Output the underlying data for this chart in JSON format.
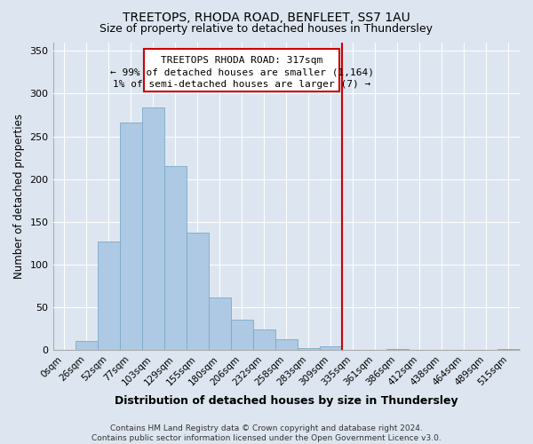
{
  "title": "TREETOPS, RHODA ROAD, BENFLEET, SS7 1AU",
  "subtitle": "Size of property relative to detached houses in Thundersley",
  "xlabel": "Distribution of detached houses by size in Thundersley",
  "ylabel": "Number of detached properties",
  "footer": "Contains HM Land Registry data © Crown copyright and database right 2024.\nContains public sector information licensed under the Open Government Licence v3.0.",
  "categories": [
    "0sqm",
    "26sqm",
    "52sqm",
    "77sqm",
    "103sqm",
    "129sqm",
    "155sqm",
    "180sqm",
    "206sqm",
    "232sqm",
    "258sqm",
    "283sqm",
    "309sqm",
    "335sqm",
    "361sqm",
    "386sqm",
    "412sqm",
    "438sqm",
    "464sqm",
    "489sqm",
    "515sqm"
  ],
  "values": [
    0,
    11,
    127,
    266,
    284,
    215,
    137,
    62,
    36,
    24,
    13,
    3,
    5,
    0,
    0,
    1,
    0,
    0,
    0,
    0,
    2
  ],
  "bar_color": "#aec9e3",
  "bar_edge_color": "#7aaac8",
  "vline_x_index": 13,
  "vline_color": "#cc0000",
  "annotation_title": "TREETOPS RHODA ROAD: 317sqm",
  "annotation_line1": "← 99% of detached houses are smaller (1,164)",
  "annotation_line2": "1% of semi-detached houses are larger (7) →",
  "background_color": "#dde6f0",
  "plot_background": "#dde6f0",
  "ylim": [
    0,
    360
  ],
  "yticks": [
    0,
    50,
    100,
    150,
    200,
    250,
    300,
    350
  ],
  "title_fontsize": 10,
  "subtitle_fontsize": 9,
  "xlabel_fontsize": 9,
  "ylabel_fontsize": 8.5,
  "footer_fontsize": 6.5,
  "ann_fontsize": 8
}
